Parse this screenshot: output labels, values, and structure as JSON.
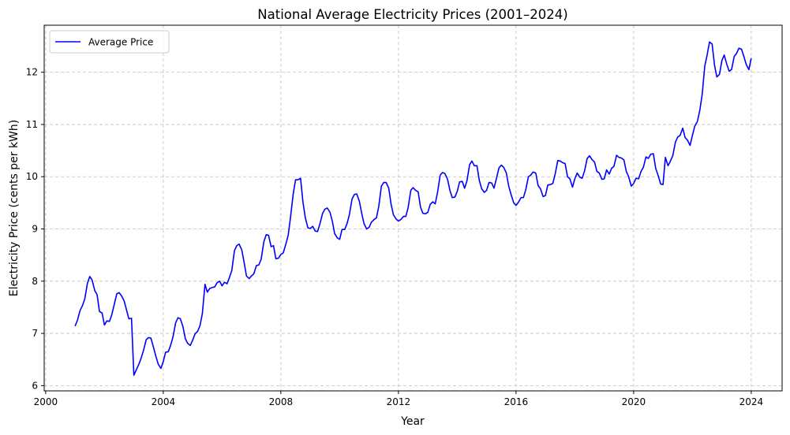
{
  "chart_data": {
    "type": "line",
    "title": "National Average Electricity Prices (2001–2024)",
    "xlabel": "Year",
    "ylabel": "Electricity Price (cents per kWh)",
    "xlim": [
      1999.95,
      2025.05
    ],
    "ylim": [
      5.9,
      12.9
    ],
    "xticks": [
      2000,
      2004,
      2008,
      2012,
      2016,
      2020,
      2024
    ],
    "yticks": [
      6,
      7,
      8,
      9,
      10,
      11,
      12
    ],
    "grid": true,
    "legend_position": "top-left",
    "line_color": "#0000ff",
    "series": [
      {
        "name": "Average Price",
        "points": [
          [
            2001.0,
            7.14
          ],
          [
            2001.08,
            7.25
          ],
          [
            2001.17,
            7.44
          ],
          [
            2001.25,
            7.53
          ],
          [
            2001.33,
            7.66
          ],
          [
            2001.42,
            7.96
          ],
          [
            2001.5,
            8.09
          ],
          [
            2001.58,
            8.02
          ],
          [
            2001.67,
            7.82
          ],
          [
            2001.75,
            7.74
          ],
          [
            2001.83,
            7.42
          ],
          [
            2001.92,
            7.39
          ],
          [
            2002.0,
            7.16
          ],
          [
            2002.08,
            7.24
          ],
          [
            2002.17,
            7.23
          ],
          [
            2002.25,
            7.36
          ],
          [
            2002.33,
            7.55
          ],
          [
            2002.42,
            7.76
          ],
          [
            2002.5,
            7.78
          ],
          [
            2002.58,
            7.72
          ],
          [
            2002.67,
            7.62
          ],
          [
            2002.75,
            7.45
          ],
          [
            2002.83,
            7.28
          ],
          [
            2002.92,
            7.29
          ],
          [
            2003.0,
            6.2
          ],
          [
            2003.08,
            6.3
          ],
          [
            2003.17,
            6.41
          ],
          [
            2003.25,
            6.53
          ],
          [
            2003.33,
            6.68
          ],
          [
            2003.42,
            6.88
          ],
          [
            2003.5,
            6.92
          ],
          [
            2003.58,
            6.91
          ],
          [
            2003.67,
            6.73
          ],
          [
            2003.75,
            6.56
          ],
          [
            2003.83,
            6.41
          ],
          [
            2003.92,
            6.33
          ],
          [
            2004.0,
            6.46
          ],
          [
            2004.08,
            6.64
          ],
          [
            2004.17,
            6.65
          ],
          [
            2004.25,
            6.77
          ],
          [
            2004.33,
            6.93
          ],
          [
            2004.42,
            7.2
          ],
          [
            2004.5,
            7.3
          ],
          [
            2004.58,
            7.28
          ],
          [
            2004.67,
            7.13
          ],
          [
            2004.75,
            6.9
          ],
          [
            2004.83,
            6.81
          ],
          [
            2004.92,
            6.77
          ],
          [
            2005.0,
            6.87
          ],
          [
            2005.08,
            6.99
          ],
          [
            2005.17,
            7.04
          ],
          [
            2005.25,
            7.15
          ],
          [
            2005.33,
            7.38
          ],
          [
            2005.42,
            7.94
          ],
          [
            2005.5,
            7.79
          ],
          [
            2005.58,
            7.86
          ],
          [
            2005.67,
            7.88
          ],
          [
            2005.75,
            7.89
          ],
          [
            2005.83,
            7.97
          ],
          [
            2005.92,
            8.0
          ],
          [
            2006.0,
            7.91
          ],
          [
            2006.08,
            7.98
          ],
          [
            2006.17,
            7.95
          ],
          [
            2006.25,
            8.07
          ],
          [
            2006.33,
            8.2
          ],
          [
            2006.42,
            8.58
          ],
          [
            2006.5,
            8.68
          ],
          [
            2006.58,
            8.71
          ],
          [
            2006.67,
            8.6
          ],
          [
            2006.75,
            8.36
          ],
          [
            2006.83,
            8.1
          ],
          [
            2006.92,
            8.05
          ],
          [
            2007.0,
            8.1
          ],
          [
            2007.08,
            8.14
          ],
          [
            2007.17,
            8.3
          ],
          [
            2007.25,
            8.31
          ],
          [
            2007.33,
            8.42
          ],
          [
            2007.42,
            8.75
          ],
          [
            2007.5,
            8.89
          ],
          [
            2007.58,
            8.88
          ],
          [
            2007.67,
            8.66
          ],
          [
            2007.75,
            8.68
          ],
          [
            2007.83,
            8.43
          ],
          [
            2007.92,
            8.44
          ],
          [
            2008.0,
            8.51
          ],
          [
            2008.08,
            8.54
          ],
          [
            2008.17,
            8.71
          ],
          [
            2008.25,
            8.88
          ],
          [
            2008.33,
            9.23
          ],
          [
            2008.42,
            9.67
          ],
          [
            2008.5,
            9.94
          ],
          [
            2008.58,
            9.94
          ],
          [
            2008.67,
            9.97
          ],
          [
            2008.75,
            9.52
          ],
          [
            2008.83,
            9.22
          ],
          [
            2008.92,
            9.02
          ],
          [
            2009.0,
            9.01
          ],
          [
            2009.08,
            9.05
          ],
          [
            2009.17,
            8.96
          ],
          [
            2009.25,
            8.95
          ],
          [
            2009.33,
            9.1
          ],
          [
            2009.42,
            9.3
          ],
          [
            2009.5,
            9.38
          ],
          [
            2009.58,
            9.4
          ],
          [
            2009.67,
            9.32
          ],
          [
            2009.75,
            9.15
          ],
          [
            2009.83,
            8.91
          ],
          [
            2009.92,
            8.83
          ],
          [
            2010.0,
            8.8
          ],
          [
            2010.08,
            8.99
          ],
          [
            2010.17,
            8.99
          ],
          [
            2010.25,
            9.1
          ],
          [
            2010.33,
            9.27
          ],
          [
            2010.42,
            9.57
          ],
          [
            2010.5,
            9.66
          ],
          [
            2010.58,
            9.67
          ],
          [
            2010.67,
            9.53
          ],
          [
            2010.75,
            9.3
          ],
          [
            2010.83,
            9.1
          ],
          [
            2010.92,
            9.0
          ],
          [
            2011.0,
            9.03
          ],
          [
            2011.08,
            9.13
          ],
          [
            2011.17,
            9.18
          ],
          [
            2011.25,
            9.21
          ],
          [
            2011.33,
            9.43
          ],
          [
            2011.42,
            9.82
          ],
          [
            2011.5,
            9.89
          ],
          [
            2011.58,
            9.89
          ],
          [
            2011.67,
            9.78
          ],
          [
            2011.75,
            9.47
          ],
          [
            2011.83,
            9.27
          ],
          [
            2011.92,
            9.19
          ],
          [
            2012.0,
            9.15
          ],
          [
            2012.08,
            9.18
          ],
          [
            2012.17,
            9.24
          ],
          [
            2012.25,
            9.24
          ],
          [
            2012.33,
            9.41
          ],
          [
            2012.42,
            9.74
          ],
          [
            2012.5,
            9.79
          ],
          [
            2012.58,
            9.74
          ],
          [
            2012.67,
            9.71
          ],
          [
            2012.75,
            9.42
          ],
          [
            2012.83,
            9.3
          ],
          [
            2012.92,
            9.29
          ],
          [
            2013.0,
            9.32
          ],
          [
            2013.08,
            9.47
          ],
          [
            2013.17,
            9.52
          ],
          [
            2013.25,
            9.48
          ],
          [
            2013.33,
            9.7
          ],
          [
            2013.42,
            10.03
          ],
          [
            2013.5,
            10.08
          ],
          [
            2013.58,
            10.06
          ],
          [
            2013.67,
            9.95
          ],
          [
            2013.75,
            9.74
          ],
          [
            2013.83,
            9.6
          ],
          [
            2013.92,
            9.61
          ],
          [
            2014.0,
            9.72
          ],
          [
            2014.08,
            9.9
          ],
          [
            2014.17,
            9.91
          ],
          [
            2014.25,
            9.78
          ],
          [
            2014.33,
            9.92
          ],
          [
            2014.42,
            10.23
          ],
          [
            2014.5,
            10.3
          ],
          [
            2014.58,
            10.21
          ],
          [
            2014.67,
            10.21
          ],
          [
            2014.75,
            9.93
          ],
          [
            2014.83,
            9.77
          ],
          [
            2014.92,
            9.7
          ],
          [
            2015.0,
            9.74
          ],
          [
            2015.08,
            9.89
          ],
          [
            2015.17,
            9.88
          ],
          [
            2015.25,
            9.78
          ],
          [
            2015.33,
            9.96
          ],
          [
            2015.42,
            10.17
          ],
          [
            2015.5,
            10.22
          ],
          [
            2015.58,
            10.18
          ],
          [
            2015.67,
            10.07
          ],
          [
            2015.75,
            9.82
          ],
          [
            2015.83,
            9.66
          ],
          [
            2015.92,
            9.5
          ],
          [
            2016.0,
            9.45
          ],
          [
            2016.08,
            9.51
          ],
          [
            2016.17,
            9.6
          ],
          [
            2016.25,
            9.6
          ],
          [
            2016.33,
            9.75
          ],
          [
            2016.42,
            10.0
          ],
          [
            2016.5,
            10.03
          ],
          [
            2016.58,
            10.09
          ],
          [
            2016.67,
            10.07
          ],
          [
            2016.75,
            9.83
          ],
          [
            2016.83,
            9.77
          ],
          [
            2016.92,
            9.62
          ],
          [
            2017.0,
            9.64
          ],
          [
            2017.08,
            9.84
          ],
          [
            2017.17,
            9.85
          ],
          [
            2017.25,
            9.87
          ],
          [
            2017.33,
            10.05
          ],
          [
            2017.42,
            10.31
          ],
          [
            2017.5,
            10.3
          ],
          [
            2017.58,
            10.27
          ],
          [
            2017.67,
            10.25
          ],
          [
            2017.75,
            10.0
          ],
          [
            2017.83,
            9.96
          ],
          [
            2017.92,
            9.8
          ],
          [
            2018.0,
            9.96
          ],
          [
            2018.08,
            10.07
          ],
          [
            2018.17,
            9.99
          ],
          [
            2018.25,
            9.97
          ],
          [
            2018.33,
            10.11
          ],
          [
            2018.42,
            10.35
          ],
          [
            2018.5,
            10.4
          ],
          [
            2018.58,
            10.33
          ],
          [
            2018.67,
            10.28
          ],
          [
            2018.75,
            10.1
          ],
          [
            2018.83,
            10.07
          ],
          [
            2018.92,
            9.95
          ],
          [
            2019.0,
            9.96
          ],
          [
            2019.08,
            10.13
          ],
          [
            2019.17,
            10.05
          ],
          [
            2019.25,
            10.16
          ],
          [
            2019.33,
            10.2
          ],
          [
            2019.42,
            10.41
          ],
          [
            2019.5,
            10.37
          ],
          [
            2019.58,
            10.36
          ],
          [
            2019.67,
            10.32
          ],
          [
            2019.75,
            10.1
          ],
          [
            2019.83,
            10.0
          ],
          [
            2019.92,
            9.82
          ],
          [
            2020.0,
            9.87
          ],
          [
            2020.08,
            9.97
          ],
          [
            2020.17,
            9.96
          ],
          [
            2020.25,
            10.1
          ],
          [
            2020.33,
            10.18
          ],
          [
            2020.42,
            10.38
          ],
          [
            2020.5,
            10.35
          ],
          [
            2020.58,
            10.43
          ],
          [
            2020.67,
            10.44
          ],
          [
            2020.75,
            10.16
          ],
          [
            2020.83,
            10.03
          ],
          [
            2020.92,
            9.86
          ],
          [
            2021.0,
            9.85
          ],
          [
            2021.08,
            10.37
          ],
          [
            2021.17,
            10.21
          ],
          [
            2021.25,
            10.3
          ],
          [
            2021.33,
            10.4
          ],
          [
            2021.42,
            10.66
          ],
          [
            2021.5,
            10.76
          ],
          [
            2021.58,
            10.79
          ],
          [
            2021.67,
            10.93
          ],
          [
            2021.75,
            10.75
          ],
          [
            2021.83,
            10.7
          ],
          [
            2021.92,
            10.6
          ],
          [
            2022.0,
            10.79
          ],
          [
            2022.08,
            10.97
          ],
          [
            2022.17,
            11.06
          ],
          [
            2022.25,
            11.27
          ],
          [
            2022.33,
            11.57
          ],
          [
            2022.42,
            12.12
          ],
          [
            2022.5,
            12.33
          ],
          [
            2022.58,
            12.58
          ],
          [
            2022.67,
            12.54
          ],
          [
            2022.75,
            12.14
          ],
          [
            2022.83,
            11.91
          ],
          [
            2022.92,
            11.96
          ],
          [
            2023.0,
            12.22
          ],
          [
            2023.08,
            12.33
          ],
          [
            2023.17,
            12.15
          ],
          [
            2023.25,
            12.02
          ],
          [
            2023.33,
            12.05
          ],
          [
            2023.42,
            12.3
          ],
          [
            2023.5,
            12.36
          ],
          [
            2023.58,
            12.46
          ],
          [
            2023.67,
            12.44
          ],
          [
            2023.75,
            12.3
          ],
          [
            2023.83,
            12.15
          ],
          [
            2023.92,
            12.05
          ],
          [
            2024.0,
            12.27
          ]
        ]
      }
    ]
  }
}
